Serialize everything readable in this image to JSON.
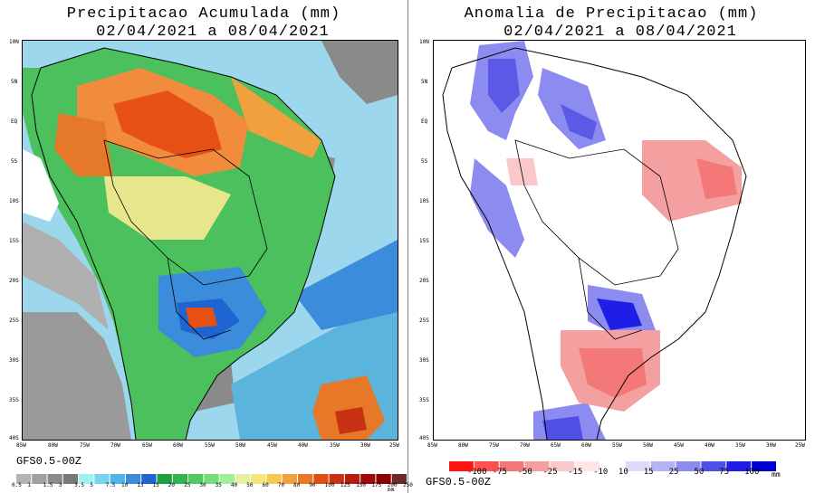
{
  "left_panel": {
    "title_line1": "Precipitacao Acumulada (mm)",
    "title_line2": "02/04/2021 a 08/04/2021",
    "model_label": "GFS0.5-00Z",
    "unit": "mm",
    "lat_labels": [
      "10N",
      "5N",
      "EQ",
      "5S",
      "10S",
      "15S",
      "20S",
      "25S",
      "30S",
      "35S",
      "40S"
    ],
    "lon_labels": [
      "85W",
      "80W",
      "75W",
      "70W",
      "65W",
      "60W",
      "55W",
      "50W",
      "45W",
      "40W",
      "35W",
      "30W",
      "25W"
    ],
    "legend_values": [
      "0.5",
      "1",
      "1.5",
      "3",
      "3.5",
      "5",
      "7.5",
      "10",
      "13",
      "15",
      "20",
      "25",
      "30",
      "35",
      "40",
      "50",
      "60",
      "70",
      "80",
      "90",
      "100",
      "125",
      "150",
      "175",
      "200",
      "250"
    ],
    "legend_colors": [
      "#b4b4b4",
      "#a0a0a0",
      "#8c8c8c",
      "#787878",
      "#a0f0f0",
      "#78d2f0",
      "#50b4e6",
      "#3c8cdc",
      "#1e64d2",
      "#1ea03c",
      "#32b450",
      "#50c864",
      "#78dc78",
      "#a0f09a",
      "#e6f0a0",
      "#f5e678",
      "#f5c850",
      "#f0a03c",
      "#e67828",
      "#dc5014",
      "#c83214",
      "#b41e0a",
      "#a00a0a",
      "#8c0000",
      "#6e2828"
    ]
  },
  "right_panel": {
    "title_line1": "Anomalia de Precipitacao (mm)",
    "title_line2": "02/04/2021 a 08/04/2021",
    "model_label": "GFS0.5-00Z",
    "unit": "mm",
    "lat_labels": [
      "10N",
      "5N",
      "EQ",
      "5S",
      "10S",
      "15S",
      "20S",
      "25S",
      "30S",
      "35S",
      "40S"
    ],
    "lon_labels": [
      "85W",
      "80W",
      "75W",
      "70W",
      "65W",
      "60W",
      "55W",
      "50W",
      "45W",
      "40W",
      "35W",
      "30W",
      "25W"
    ],
    "legend_values": [
      "-100",
      "-75",
      "-50",
      "-25",
      "-15",
      "-10",
      "10",
      "15",
      "25",
      "50",
      "75",
      "100"
    ],
    "legend_colors": [
      "#ff1414",
      "#ff5050",
      "#f57878",
      "#f5a0a0",
      "#fac8c8",
      "#ffe6e6",
      "#ffffff",
      "#dcdcfa",
      "#b4b4f5",
      "#8c8cf0",
      "#5050e6",
      "#1e1ee6",
      "#0000d2"
    ]
  },
  "colors": {
    "land_outline": "#000000",
    "ocean_low": "#78c8e6",
    "heavy_rain": "#e65014",
    "moderate_rain": "#3cb44b",
    "dry_gray": "#9a9a9a",
    "positive_anomaly": "#5a5ae6",
    "negative_anomaly": "#f08c8c"
  }
}
